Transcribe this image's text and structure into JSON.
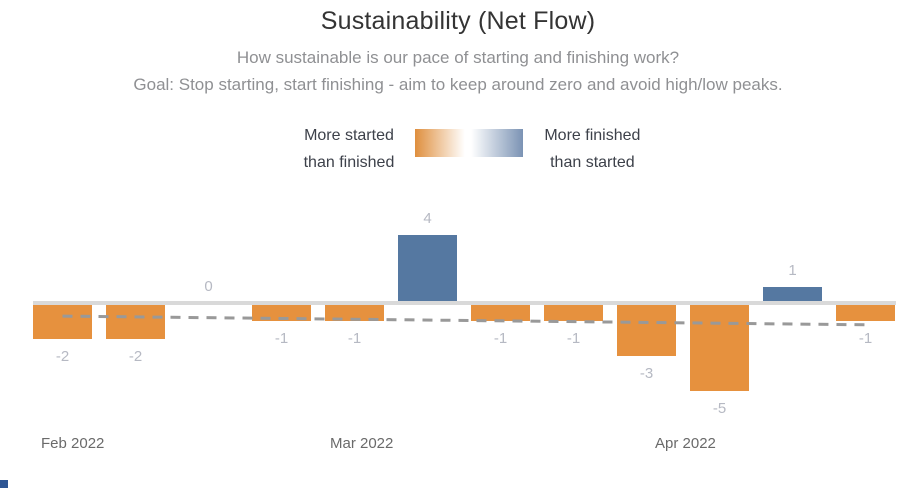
{
  "page": {
    "title": "Sustainability (Net Flow)",
    "subtitle_line1": "How sustainable is our pace of starting and finishing work?",
    "subtitle_line2": "Goal: Stop starting, start finishing - aim to keep around zero and avoid high/low peaks."
  },
  "legend": {
    "left_line1": "More started",
    "left_line2": "than finished",
    "right_line1": "More finished",
    "right_line2": "than started",
    "gradient_left_color": "#df8f3e",
    "gradient_mid_color": "#ffffff",
    "gradient_right_color": "#7b93b4"
  },
  "chart_data": {
    "type": "bar",
    "title": "Sustainability (Net Flow)",
    "values": [
      -2,
      -2,
      0,
      -1,
      -1,
      4,
      -1,
      -1,
      -3,
      -5,
      1,
      -1
    ],
    "data_labels": [
      "-2",
      "-2",
      "0",
      "-1",
      "-1",
      "4",
      "-1",
      "-1",
      "-3",
      "-5",
      "1",
      "-1"
    ],
    "x_axis_labels": [
      "Feb 2022",
      "Mar 2022",
      "Apr 2022"
    ],
    "ylim": [
      -5,
      4
    ],
    "baseline_value": 0,
    "grid": false,
    "legend_position": "top-center",
    "positive_color": "#5578a1",
    "negative_color": "#e6913e",
    "baseline_color": "#d9d9d9",
    "label_color": "#b6b9c3",
    "trend_line": {
      "style": "dashed",
      "color": "#999999",
      "start_value": -0.7,
      "end_value": -1.2
    }
  }
}
